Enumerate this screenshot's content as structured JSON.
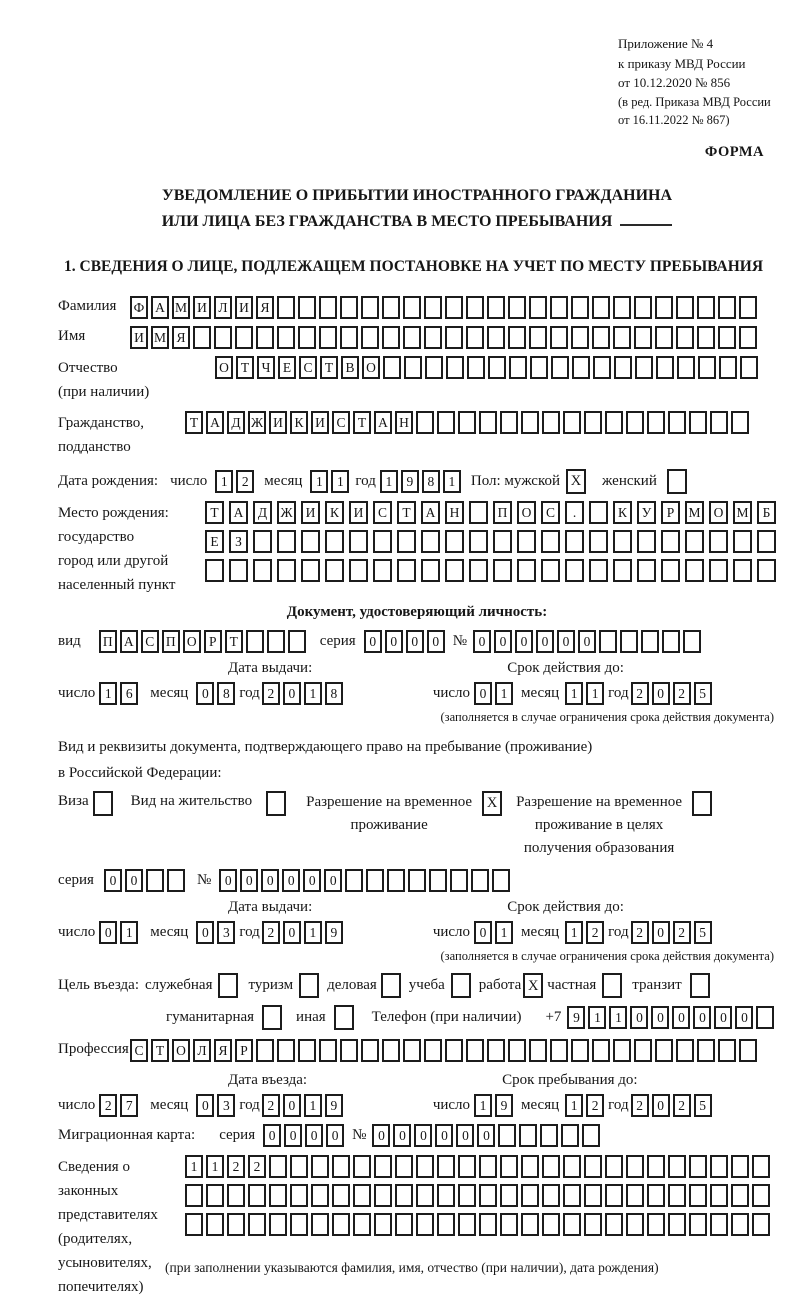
{
  "header": {
    "ref1": "Приложение № 4",
    "ref2": "к приказу МВД России",
    "ref3": "от 10.12.2020 № 856",
    "ref4": "(в ред. Приказа МВД России",
    "ref5": "от 16.11.2022 № 867)",
    "forma": "ФОРМА"
  },
  "title": {
    "line1": "УВЕДОМЛЕНИЕ О ПРИБЫТИИ ИНОСТРАННОГО ГРАЖДАНИНА",
    "line2": "ИЛИ ЛИЦА БЕЗ ГРАЖДАНСТВА В МЕСТО ПРЕБЫВАНИЯ"
  },
  "section1": "1. СВЕДЕНИЯ О ЛИЦЕ, ПОДЛЕЖАЩЕМ ПОСТАНОВКЕ НА УЧЕТ ПО МЕСТУ ПРЕБЫВАНИЯ",
  "labels": {
    "familiya": "Фамилия",
    "imya": "Имя",
    "otchestvo1": "Отчество",
    "otchestvo2": "(при наличии)",
    "grazhdanstvo1": "Гражданство,",
    "grazhdanstvo2": "подданство",
    "birthdate": "Дата рождения:",
    "chislo": "число",
    "mesyac": "месяц",
    "god": "год",
    "pol_male": "Пол: мужской",
    "pol_female": "женский",
    "birthplace1": "Место рождения:",
    "birthplace2": "государство",
    "birthplace3": "город или другой",
    "birthplace4": "населенный пункт",
    "doc_header": "Документ, удостоверяющий личность:",
    "vid": "вид",
    "seriya": "серия",
    "no": "№",
    "issue_date": "Дата выдачи:",
    "valid_until": "Срок действия до:",
    "valid_note": "(заполняется в случае ограничения срока действия документа)",
    "resid_doc1": "Вид и реквизиты документа, подтверждающего право на пребывание (проживание)",
    "resid_doc2": "в Российской Федерации:",
    "visa": "Виза",
    "vnzh": "Вид на жительство",
    "rvp1": "Разрешение на временное",
    "rvp2": "проживание",
    "rvp_edu1": "Разрешение на временное",
    "rvp_edu2": "проживание в целях",
    "rvp_edu3": "получения образования",
    "purpose": "Цель въезда:",
    "sluzhebnaya": "служебная",
    "turizm": "туризм",
    "delovaya": "деловая",
    "ucheba": "учеба",
    "rabota": "работа",
    "chastnaya": "частная",
    "tranzit": "транзит",
    "gumanitarnaya": "гуманитарная",
    "inaya": "иная",
    "phone": "Телефон (при наличии)",
    "plus7": "+7",
    "professiya": "Профессия",
    "entry_date": "Дата въезда:",
    "stay_until": "Срок пребывания до:",
    "mig_karta": "Миграционная карта:",
    "rep1": "Сведения о",
    "rep2": "законных",
    "rep3": "представителях",
    "rep4": "(родителях,",
    "rep5": "усыновителях,",
    "rep6": "попечителях)",
    "rep_note": "(при заполнении указываются фамилия, имя, отчество (при наличии), дата рождения)"
  },
  "fields": {
    "familiya": {
      "v": "ФАМИЛИЯ",
      "n": 30
    },
    "imya": {
      "v": "ИМЯ",
      "n": 30
    },
    "otchestvo": {
      "v": "ОТЧЕСТВО",
      "n": 26
    },
    "grazhdanstvo": {
      "v": "ТАДЖИКИСТАН",
      "n": 27
    },
    "birth_day": {
      "v": "12",
      "n": 2
    },
    "birth_month": {
      "v": "11",
      "n": 2
    },
    "birth_year": {
      "v": "1981",
      "n": 4
    },
    "sex_male": {
      "v": "X",
      "n": 1
    },
    "sex_female": {
      "v": "",
      "n": 1
    },
    "birthplace_row1": {
      "v": "ТАДЖИКИСТАН ПОС. КУРМОМБ",
      "n": 24
    },
    "birthplace_row2": {
      "v": "ЕЗ",
      "n": 24
    },
    "birthplace_row3": {
      "v": "",
      "n": 24
    },
    "doc_vid": {
      "v": "ПАСПОРТ",
      "n": 10
    },
    "doc_seriya": {
      "v": "0000",
      "n": 4
    },
    "doc_no": {
      "v": "000000",
      "n": 11
    },
    "doc_issue_day": {
      "v": "16",
      "n": 2
    },
    "doc_issue_month": {
      "v": "08",
      "n": 2
    },
    "doc_issue_year": {
      "v": "2018",
      "n": 4
    },
    "doc_valid_day": {
      "v": "01",
      "n": 2
    },
    "doc_valid_month": {
      "v": "11",
      "n": 2
    },
    "doc_valid_year": {
      "v": "2025",
      "n": 4
    },
    "visa_cb": {
      "v": "",
      "n": 1
    },
    "vnzh_cb": {
      "v": "",
      "n": 1
    },
    "rvp_cb": {
      "v": "X",
      "n": 1
    },
    "rvp_edu_cb": {
      "v": "",
      "n": 1
    },
    "resid_seriya": {
      "v": "00",
      "n": 4
    },
    "resid_no": {
      "v": "000000",
      "n": 14
    },
    "resid_issue_day": {
      "v": "01",
      "n": 2
    },
    "resid_issue_month": {
      "v": "03",
      "n": 2
    },
    "resid_issue_year": {
      "v": "2019",
      "n": 4
    },
    "resid_valid_day": {
      "v": "01",
      "n": 2
    },
    "resid_valid_month": {
      "v": "12",
      "n": 2
    },
    "resid_valid_year": {
      "v": "2025",
      "n": 4
    },
    "sluzhebnaya_cb": {
      "v": "",
      "n": 1
    },
    "turizm_cb": {
      "v": "",
      "n": 1
    },
    "delovaya_cb": {
      "v": "",
      "n": 1
    },
    "ucheba_cb": {
      "v": "",
      "n": 1
    },
    "rabota_cb": {
      "v": "X",
      "n": 1
    },
    "chastnaya_cb": {
      "v": "",
      "n": 1
    },
    "tranzit_cb": {
      "v": "",
      "n": 1
    },
    "gumanitarnaya_cb": {
      "v": "",
      "n": 1
    },
    "inaya_cb": {
      "v": "",
      "n": 1
    },
    "phone": {
      "v": "911000000",
      "n": 10
    },
    "professiya": {
      "v": "СТОЛЯР",
      "n": 30
    },
    "entry_day": {
      "v": "27",
      "n": 2
    },
    "entry_month": {
      "v": "03",
      "n": 2
    },
    "entry_year": {
      "v": "2019",
      "n": 4
    },
    "stay_day": {
      "v": "19",
      "n": 2
    },
    "stay_month": {
      "v": "12",
      "n": 2
    },
    "stay_year": {
      "v": "2025",
      "n": 4
    },
    "mig_seriya": {
      "v": "0000",
      "n": 4
    },
    "mig_no": {
      "v": "000000",
      "n": 11
    },
    "rep_row1": {
      "v": "1122",
      "n": 28
    },
    "rep_row2": {
      "v": "",
      "n": 28
    },
    "rep_row3": {
      "v": "",
      "n": 28
    }
  }
}
